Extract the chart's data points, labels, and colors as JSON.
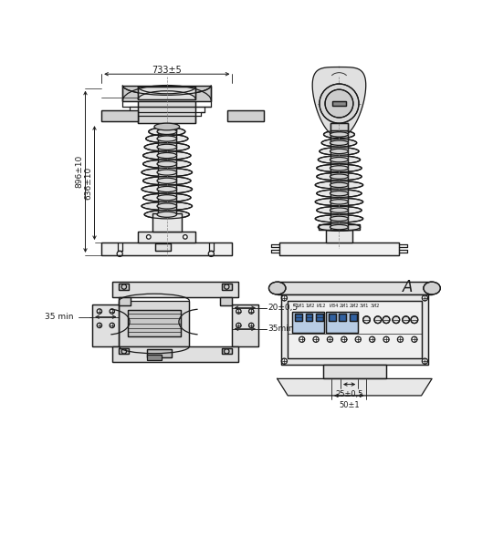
{
  "bg_color": "#ffffff",
  "lc": "#1a1a1a",
  "lw": 0.9,
  "dim_733": "733±5",
  "dim_896": "896±10",
  "dim_636": "636±10",
  "dim_35min_left": "35 min",
  "dim_20": "20±0,5",
  "dim_35min_right": "35min",
  "dim_25": "25±0,5",
  "dim_50": "50±1",
  "label_A": "A"
}
